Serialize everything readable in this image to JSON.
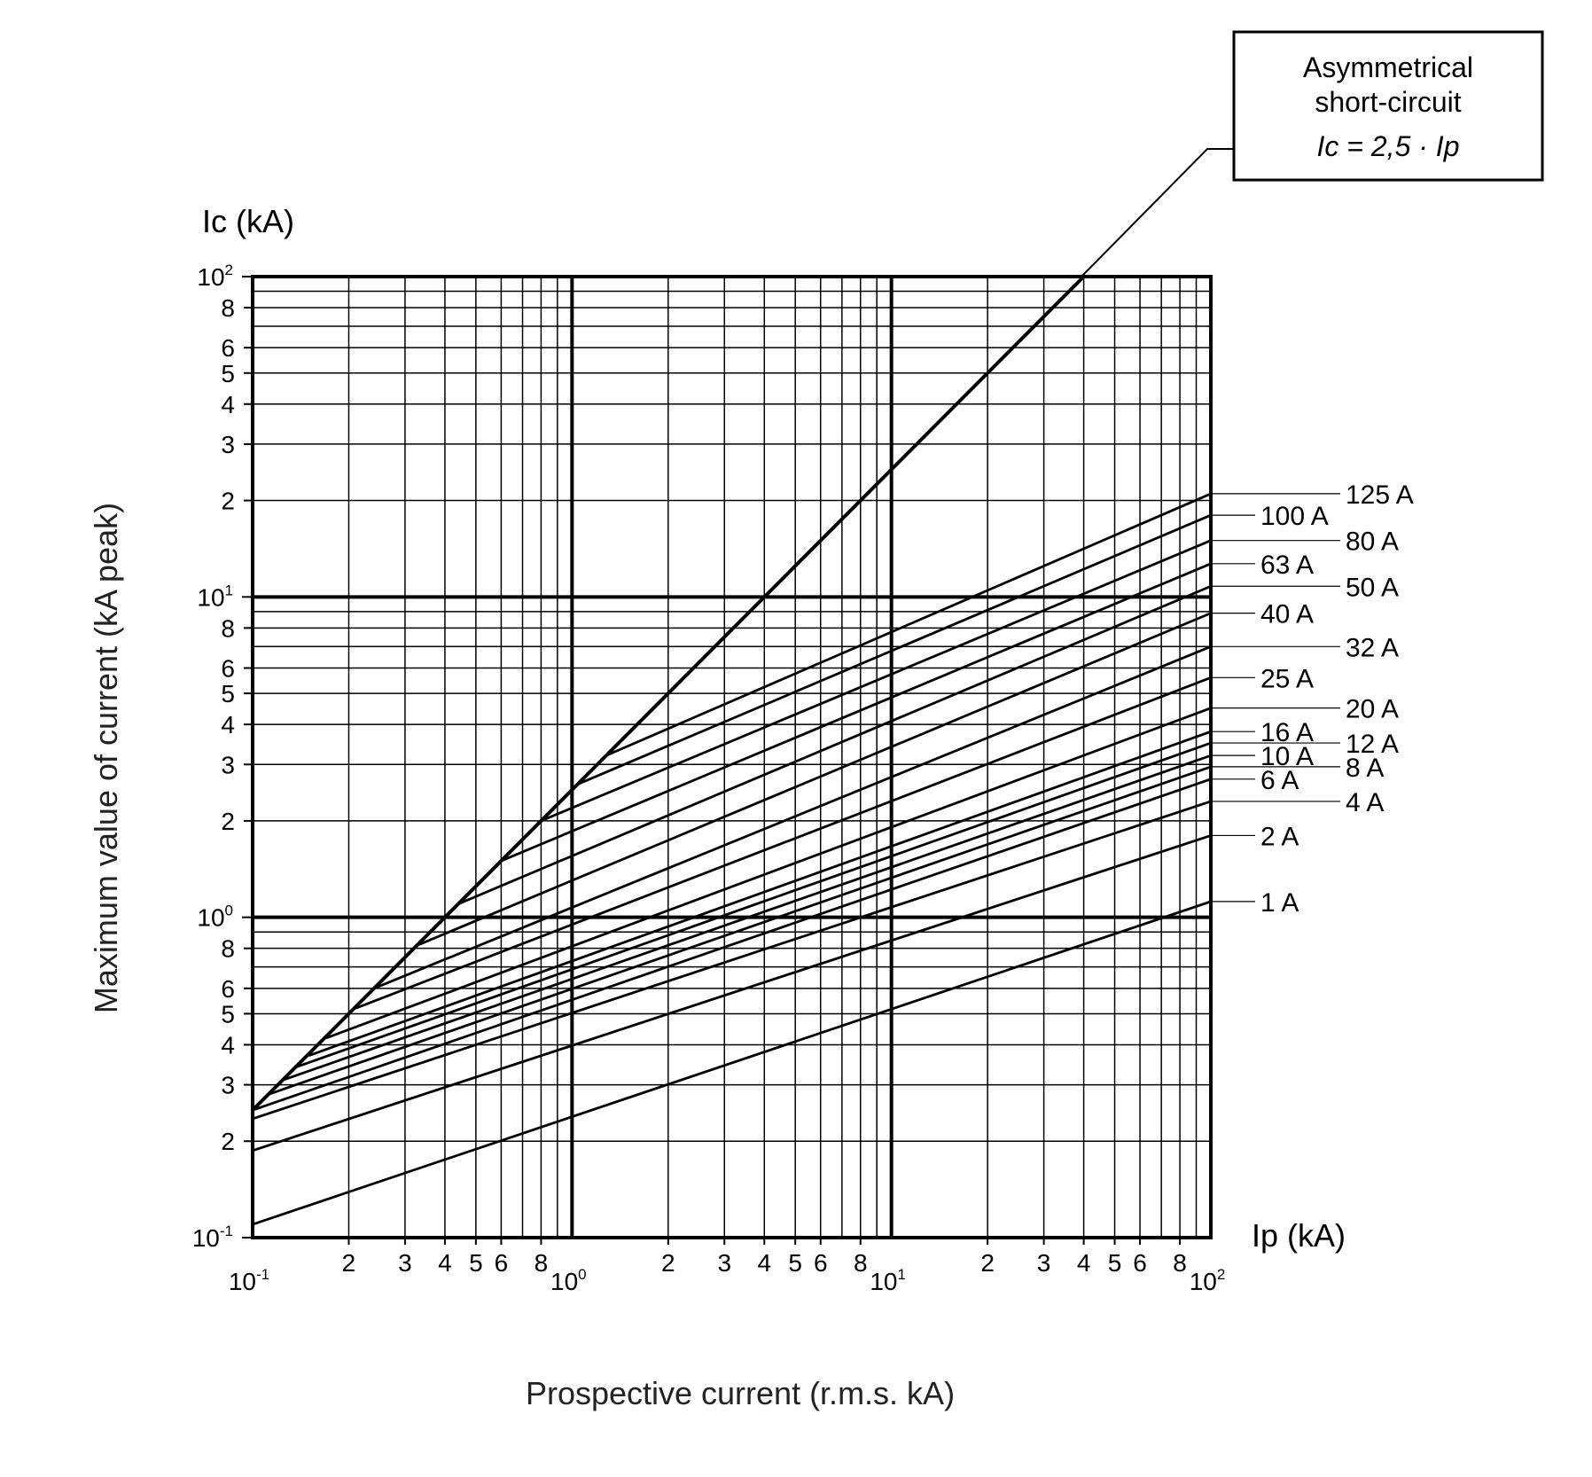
{
  "chart_data": {
    "type": "line",
    "title": "",
    "x_scale": "log",
    "y_scale": "log",
    "xlim": [
      0.1,
      100
    ],
    "ylim": [
      0.1,
      100
    ],
    "x_unit_label": "Ip (kA)",
    "y_unit_label": "Ic (kA)",
    "xlabel": "Prospective current (r.m.s. kA)",
    "ylabel": "Maximum value of current (kA peak)",
    "x_decade_labels": [
      {
        "base": "10",
        "exp": "-1"
      },
      {
        "base": "10",
        "exp": "0"
      },
      {
        "base": "10",
        "exp": "1"
      },
      {
        "base": "10",
        "exp": "2"
      }
    ],
    "y_decade_labels": [
      {
        "base": "10",
        "exp": "-1"
      },
      {
        "base": "10",
        "exp": "0"
      },
      {
        "base": "10",
        "exp": "1"
      },
      {
        "base": "10",
        "exp": "2"
      }
    ],
    "minor_tick_labels_x": [
      "2",
      "3",
      "4",
      "5",
      "6",
      "8"
    ],
    "minor_tick_labels_y": [
      "2",
      "3",
      "4",
      "5",
      "6",
      "8"
    ],
    "annotation": {
      "line1": "Asymmetrical",
      "line2": "short-circuit",
      "formula": "Ic = 2,5 · Ip"
    },
    "asymmetrical_line": {
      "name": "Ic = 2,5 · Ip",
      "factor": 2.5
    },
    "series": [
      {
        "name": "125 A",
        "label_column": "right",
        "x": [
          1.28,
          100
        ],
        "y": [
          3.2,
          21.0
        ]
      },
      {
        "name": "100 A",
        "label_column": "left",
        "x": [
          1.04,
          100
        ],
        "y": [
          2.6,
          18.0
        ]
      },
      {
        "name": "80 A",
        "label_column": "right",
        "x": [
          0.8,
          100
        ],
        "y": [
          2.0,
          15.0
        ]
      },
      {
        "name": "63 A",
        "label_column": "left",
        "x": [
          0.6,
          100
        ],
        "y": [
          1.5,
          12.7
        ]
      },
      {
        "name": "50 A",
        "label_column": "right",
        "x": [
          0.44,
          100
        ],
        "y": [
          1.1,
          10.8
        ]
      },
      {
        "name": "40 A",
        "label_column": "left",
        "x": [
          0.33,
          100
        ],
        "y": [
          0.82,
          8.9
        ]
      },
      {
        "name": "32 A",
        "label_column": "right",
        "x": [
          0.24,
          100
        ],
        "y": [
          0.6,
          7.0
        ]
      },
      {
        "name": "25 A",
        "label_column": "left",
        "x": [
          0.21,
          100
        ],
        "y": [
          0.52,
          5.6
        ]
      },
      {
        "name": "20 A",
        "label_column": "right",
        "x": [
          0.17,
          100
        ],
        "y": [
          0.42,
          4.5
        ]
      },
      {
        "name": "16 A",
        "label_column": "left",
        "x": [
          0.15,
          100
        ],
        "y": [
          0.37,
          3.8
        ]
      },
      {
        "name": "12 A",
        "label_column": "right",
        "x": [
          0.136,
          100
        ],
        "y": [
          0.34,
          3.5
        ]
      },
      {
        "name": "10 A",
        "label_column": "left",
        "x": [
          0.124,
          100
        ],
        "y": [
          0.31,
          3.2
        ]
      },
      {
        "name": "8 A",
        "label_column": "right",
        "x": [
          0.112,
          100
        ],
        "y": [
          0.28,
          2.95
        ]
      },
      {
        "name": "6 A",
        "label_column": "left",
        "x": [
          0.1,
          100
        ],
        "y": [
          0.25,
          2.7
        ]
      },
      {
        "name": "4 A",
        "label_column": "right",
        "x": [
          0.1,
          100
        ],
        "y": [
          0.235,
          2.3
        ]
      },
      {
        "name": "2 A",
        "label_column": "left",
        "x": [
          0.1,
          100
        ],
        "y": [
          0.187,
          1.8
        ]
      },
      {
        "name": "1 A",
        "label_column": "left",
        "x": [
          0.1,
          100
        ],
        "y": [
          0.11,
          1.12
        ]
      }
    ]
  }
}
